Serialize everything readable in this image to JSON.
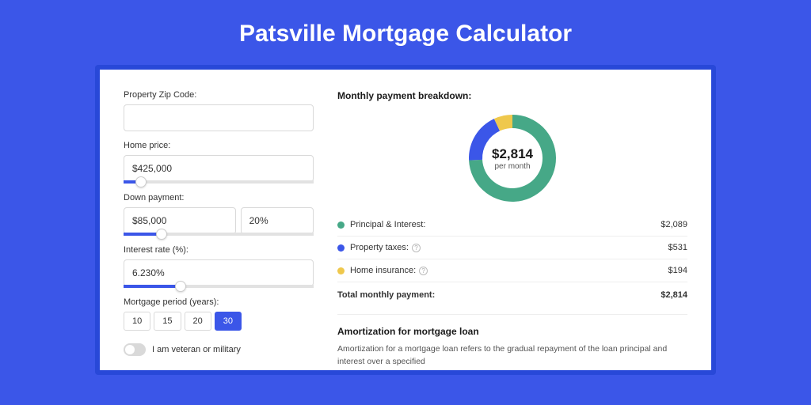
{
  "title": "Patsville Mortgage Calculator",
  "colors": {
    "page_bg": "#3b56e8",
    "outer_card_bg": "#2848d8",
    "inner_card_bg": "#ffffff",
    "accent": "#3b56e8",
    "input_border": "#d9d9d9",
    "text_primary": "#1a1a1a",
    "text_secondary": "#555555",
    "divider": "#eeeeee"
  },
  "form": {
    "zip": {
      "label": "Property Zip Code:",
      "value": ""
    },
    "home_price": {
      "label": "Home price:",
      "value": "$425,000",
      "slider_pct": 9
    },
    "down_payment": {
      "label": "Down payment:",
      "amount": "$85,000",
      "percent": "20%",
      "slider_pct": 20
    },
    "interest_rate": {
      "label": "Interest rate (%):",
      "value": "6.230%",
      "slider_pct": 30
    },
    "mortgage_period": {
      "label": "Mortgage period (years):",
      "options": [
        "10",
        "15",
        "20",
        "30"
      ],
      "selected_index": 3
    },
    "veteran": {
      "label": "I am veteran or military",
      "checked": false
    }
  },
  "breakdown": {
    "title": "Monthly payment breakdown:",
    "center_value": "$2,814",
    "center_sub": "per month",
    "donut": {
      "outer_radius": 55,
      "inner_radius": 38,
      "slices": [
        {
          "key": "principal_interest",
          "fraction": 0.7423,
          "color": "#46a887"
        },
        {
          "key": "property_taxes",
          "fraction": 0.1887,
          "color": "#3b56e8"
        },
        {
          "key": "home_insurance",
          "fraction": 0.069,
          "color": "#efc84c"
        }
      ]
    },
    "rows": [
      {
        "dot": "#46a887",
        "label": "Principal & Interest:",
        "help": false,
        "value": "$2,089"
      },
      {
        "dot": "#3b56e8",
        "label": "Property taxes:",
        "help": true,
        "value": "$531"
      },
      {
        "dot": "#efc84c",
        "label": "Home insurance:",
        "help": true,
        "value": "$194"
      }
    ],
    "total": {
      "label": "Total monthly payment:",
      "value": "$2,814"
    }
  },
  "amortization": {
    "title": "Amortization for mortgage loan",
    "text": "Amortization for a mortgage loan refers to the gradual repayment of the loan principal and interest over a specified"
  }
}
